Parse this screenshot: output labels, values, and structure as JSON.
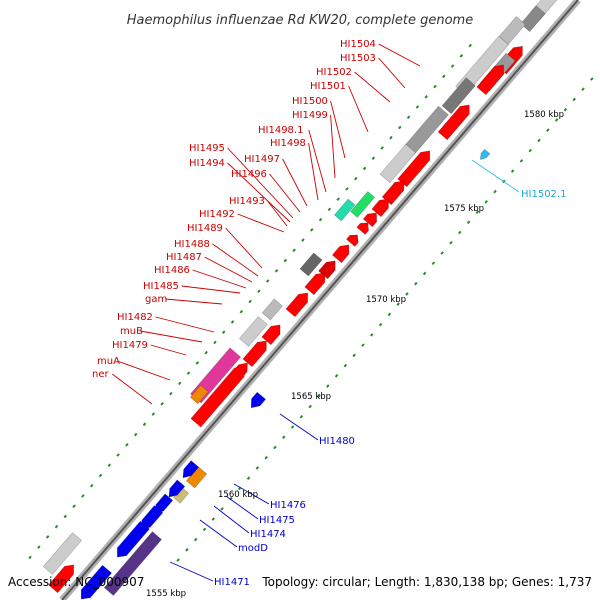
{
  "title": "Haemophilus influenzae Rd KW20, complete genome",
  "footer": {
    "accession": "Accession: NC_000907",
    "topology": "Topology: circular; Length: 1,830,138 bp; Genes: 1,737"
  },
  "scale_labels": [
    "1580 kbp",
    "1575 kbp",
    "1570 kbp",
    "1565 kbp",
    "1560 kbp",
    "1555 kbp"
  ],
  "colors": {
    "forward": "#ff0000",
    "reverse": "#0000ee",
    "pseudo": "#aaaaaa",
    "rna": "#33bbee"
  },
  "labels_upper": [
    "HI1504",
    "HI1503",
    "HI1502",
    "HI1501",
    "HI1500",
    "HI1499",
    "HI1498.1",
    "HI1498",
    "HI1497",
    "HI1496",
    "HI1495",
    "HI1494",
    "HI1493",
    "HI1492",
    "HI1489",
    "HI1488",
    "HI1487",
    "HI1486",
    "HI1485",
    "gam",
    "HI1482",
    "muB",
    "HI1479",
    "muA",
    "ner"
  ],
  "label_rna": "HI1502.1",
  "labels_lower": [
    "HI1480",
    "HI1476",
    "HI1475",
    "HI1474",
    "modD",
    "HI1471"
  ]
}
